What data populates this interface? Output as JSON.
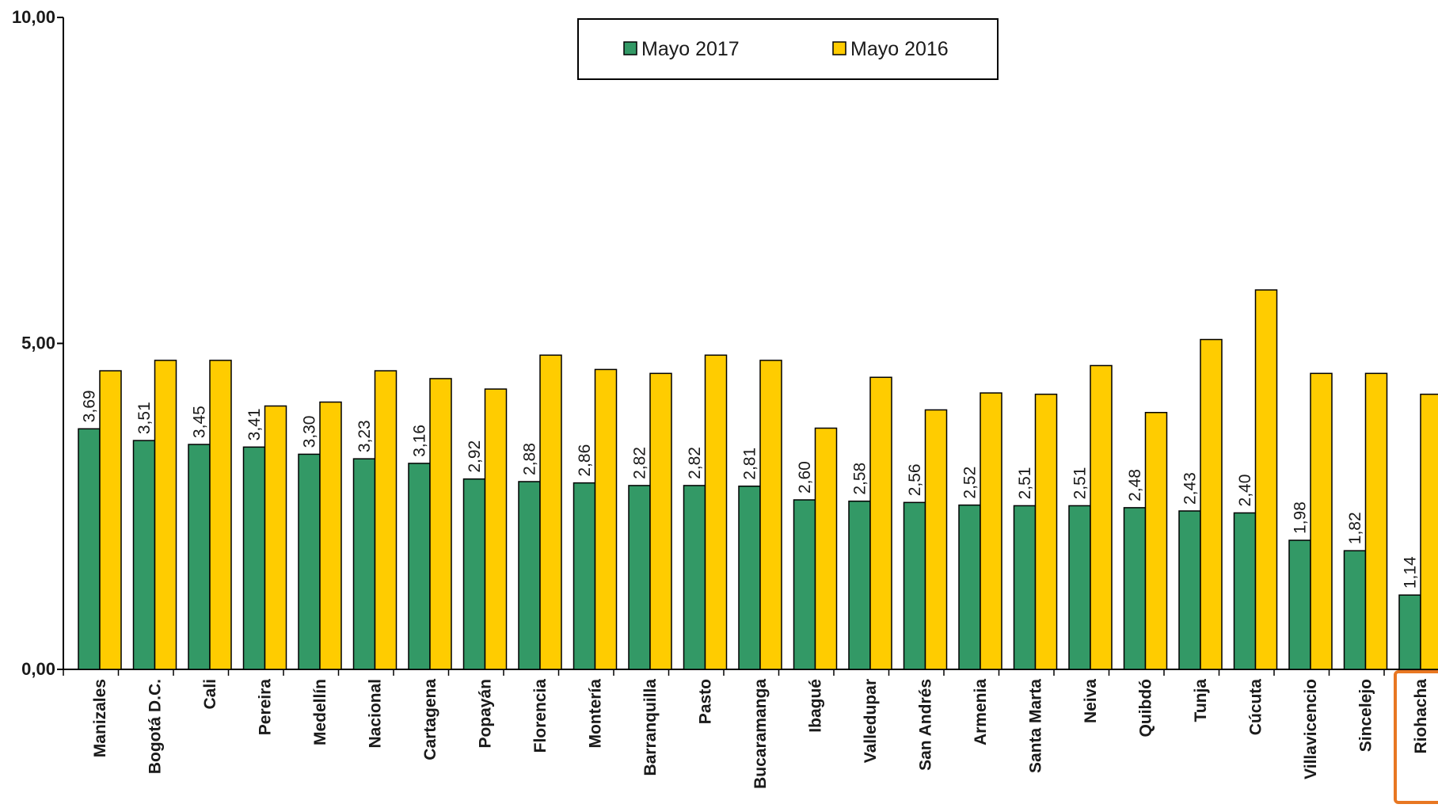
{
  "chart_data": {
    "type": "bar",
    "categories": [
      "Manizales",
      "Bogotá D.C.",
      "Cali",
      "Pereira",
      "Medellín",
      "Nacional",
      "Cartagena",
      "Popayán",
      "Florencia",
      "Montería",
      "Barranquilla",
      "Pasto",
      "Bucaramanga",
      "Ibagué",
      "Valledupar",
      "San Andrés",
      "Armenia",
      "Santa Marta",
      "Neiva",
      "Quibdó",
      "Tunja",
      "Cúcuta",
      "Villavicencio",
      "Sincelejo",
      "Riohacha"
    ],
    "series": [
      {
        "name": "Mayo 2017",
        "color": "#339966",
        "values": [
          3.69,
          3.51,
          3.45,
          3.41,
          3.3,
          3.23,
          3.16,
          2.92,
          2.88,
          2.86,
          2.82,
          2.82,
          2.81,
          2.6,
          2.58,
          2.56,
          2.52,
          2.51,
          2.51,
          2.48,
          2.43,
          2.4,
          1.98,
          1.82,
          1.14
        ],
        "data_labels": [
          "3,69",
          "3,51",
          "3,45",
          "3,41",
          "3,30",
          "3,23",
          "3,16",
          "2,92",
          "2,88",
          "2,86",
          "2,82",
          "2,82",
          "2,81",
          "2,60",
          "2,58",
          "2,56",
          "2,52",
          "2,51",
          "2,51",
          "2,48",
          "2,43",
          "2,40",
          "1,98",
          "1,82",
          "1,14"
        ]
      },
      {
        "name": "Mayo 2016",
        "color": "#ffcc00",
        "values": [
          4.58,
          4.74,
          4.74,
          4.04,
          4.1,
          4.58,
          4.46,
          4.3,
          4.82,
          4.6,
          4.54,
          4.82,
          4.74,
          3.7,
          4.48,
          3.98,
          4.24,
          4.22,
          4.66,
          3.94,
          5.06,
          5.82,
          4.54,
          4.54,
          4.22
        ]
      }
    ],
    "ylim": [
      0,
      10
    ],
    "yticks": [
      {
        "value": 0,
        "label": "0,00"
      },
      {
        "value": 5,
        "label": "5,00"
      },
      {
        "value": 10,
        "label": "10,00"
      }
    ],
    "legend_position": "top-center",
    "grid": false,
    "highlight": {
      "category": "Riohacha",
      "color": "#e87722"
    }
  }
}
